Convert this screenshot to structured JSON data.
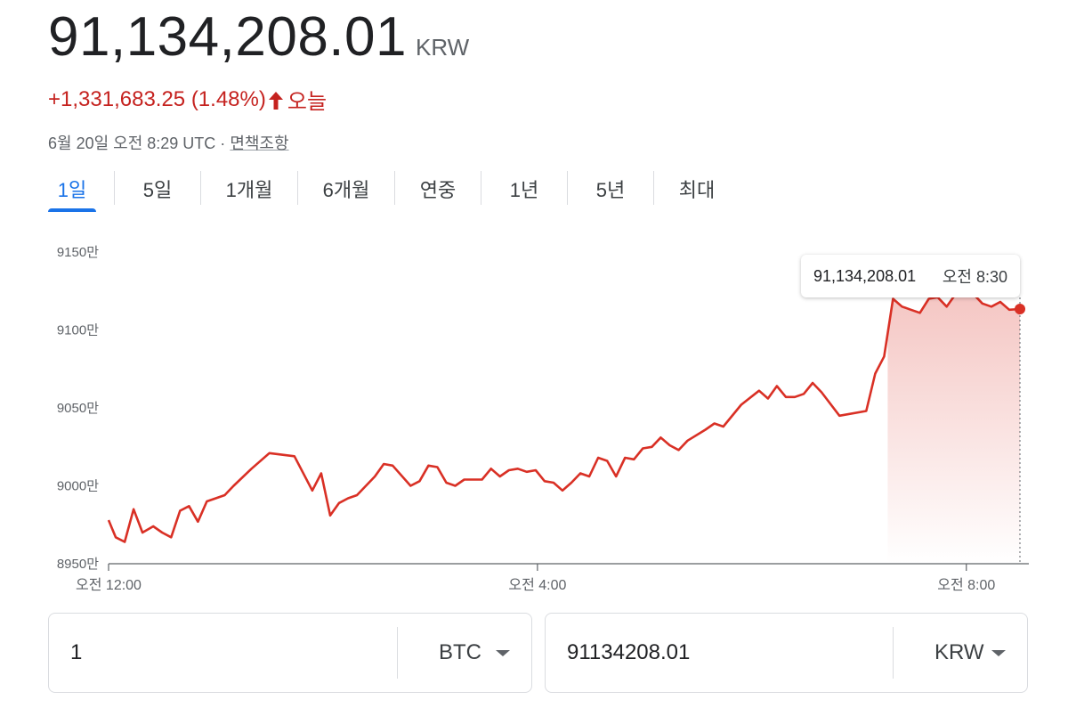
{
  "header": {
    "price": "91,134,208.01",
    "currency": "KRW",
    "change": "+1,331,683.25 (1.48%)",
    "change_period": "오늘",
    "timestamp": "6월 20일 오전 8:29 UTC · ",
    "disclaimer": "면책조항",
    "change_color": "#c5221f",
    "arrow_icon": "arrow-up-icon"
  },
  "tabs": [
    {
      "label": "1일",
      "active": true
    },
    {
      "label": "5일"
    },
    {
      "label": "1개월"
    },
    {
      "label": "6개월"
    },
    {
      "label": "연중"
    },
    {
      "label": "1년"
    },
    {
      "label": "5년"
    },
    {
      "label": "최대"
    }
  ],
  "tooltip": {
    "value": "91,134,208.01",
    "time": "오전 8:30"
  },
  "converter": {
    "from_amount": "1",
    "from_currency": "BTC",
    "to_amount": "91134208.01",
    "to_currency": "KRW"
  },
  "chart_data": {
    "type": "area",
    "line_color": "#d93025",
    "y_ticks": [
      {
        "value": 91500000,
        "label": "9150만"
      },
      {
        "value": 91000000,
        "label": "9100만"
      },
      {
        "value": 90500000,
        "label": "9050만"
      },
      {
        "value": 90000000,
        "label": "9000만"
      },
      {
        "value": 89500000,
        "label": "8950만"
      }
    ],
    "x_ticks": [
      {
        "value": 0,
        "label": "오전 12:00"
      },
      {
        "value": 240,
        "label": "오전 4:00"
      },
      {
        "value": 480,
        "label": "오전 8:00"
      }
    ],
    "xlim": [
      0,
      510
    ],
    "ylim": [
      89500000,
      91500000
    ],
    "points": [
      [
        0,
        89780000
      ],
      [
        4,
        89670000
      ],
      [
        9,
        89640000
      ],
      [
        14,
        89850000
      ],
      [
        19,
        89700000
      ],
      [
        25,
        89740000
      ],
      [
        30,
        89700000
      ],
      [
        35,
        89670000
      ],
      [
        40,
        89840000
      ],
      [
        45,
        89870000
      ],
      [
        50,
        89770000
      ],
      [
        55,
        89900000
      ],
      [
        60,
        89920000
      ],
      [
        65,
        89940000
      ],
      [
        70,
        90000000
      ],
      [
        80,
        90110000
      ],
      [
        90,
        90210000
      ],
      [
        104,
        90190000
      ],
      [
        114,
        89970000
      ],
      [
        119,
        90080000
      ],
      [
        124,
        89810000
      ],
      [
        129,
        89890000
      ],
      [
        134,
        89920000
      ],
      [
        139,
        89940000
      ],
      [
        149,
        90060000
      ],
      [
        154,
        90140000
      ],
      [
        159,
        90130000
      ],
      [
        169,
        90000000
      ],
      [
        174,
        90030000
      ],
      [
        179,
        90130000
      ],
      [
        184,
        90120000
      ],
      [
        189,
        90020000
      ],
      [
        194,
        90000000
      ],
      [
        199,
        90040000
      ],
      [
        209,
        90040000
      ],
      [
        214,
        90110000
      ],
      [
        219,
        90060000
      ],
      [
        224,
        90100000
      ],
      [
        229,
        90110000
      ],
      [
        234,
        90090000
      ],
      [
        239,
        90100000
      ],
      [
        244,
        90030000
      ],
      [
        249,
        90020000
      ],
      [
        254,
        89970000
      ],
      [
        259,
        90020000
      ],
      [
        264,
        90080000
      ],
      [
        269,
        90060000
      ],
      [
        274,
        90180000
      ],
      [
        279,
        90160000
      ],
      [
        284,
        90060000
      ],
      [
        289,
        90180000
      ],
      [
        294,
        90170000
      ],
      [
        299,
        90240000
      ],
      [
        304,
        90250000
      ],
      [
        309,
        90310000
      ],
      [
        314,
        90260000
      ],
      [
        319,
        90230000
      ],
      [
        324,
        90290000
      ],
      [
        334,
        90360000
      ],
      [
        339,
        90400000
      ],
      [
        344,
        90380000
      ],
      [
        354,
        90520000
      ],
      [
        364,
        90610000
      ],
      [
        369,
        90560000
      ],
      [
        374,
        90640000
      ],
      [
        379,
        90570000
      ],
      [
        384,
        90570000
      ],
      [
        389,
        90590000
      ],
      [
        394,
        90660000
      ],
      [
        399,
        90600000
      ],
      [
        409,
        90450000
      ],
      [
        424,
        90480000
      ],
      [
        429,
        90720000
      ],
      [
        434,
        90830000
      ],
      [
        439,
        91200000
      ],
      [
        444,
        91150000
      ],
      [
        449,
        91130000
      ],
      [
        454,
        91110000
      ],
      [
        459,
        91200000
      ],
      [
        464,
        91210000
      ],
      [
        469,
        91150000
      ],
      [
        474,
        91230000
      ],
      [
        479,
        91260000
      ],
      [
        484,
        91230000
      ],
      [
        489,
        91170000
      ],
      [
        494,
        91150000
      ],
      [
        499,
        91180000
      ],
      [
        504,
        91130000
      ],
      [
        510,
        91134208
      ]
    ],
    "tooltip_x": 510
  }
}
